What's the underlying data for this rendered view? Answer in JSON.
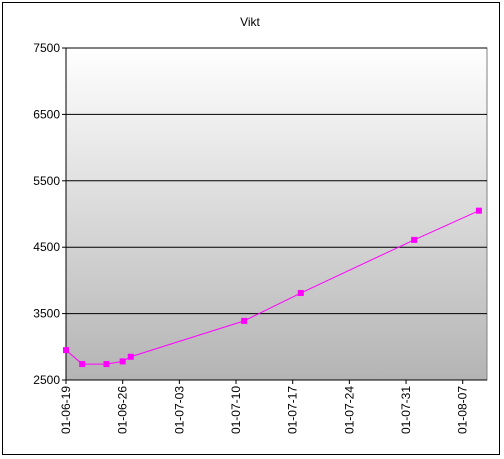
{
  "chart_data": {
    "type": "line",
    "title": "Vikt",
    "x": [
      "01-06-19",
      "01-06-21",
      "01-06-24",
      "01-06-26",
      "01-06-27",
      "01-07-11",
      "01-07-18",
      "01-08-01",
      "01-08-09"
    ],
    "series": [
      {
        "name": "Vikt",
        "color": "#ff00ff",
        "values": [
          2950,
          2740,
          2740,
          2780,
          2850,
          3390,
          3810,
          4610,
          5050
        ]
      }
    ],
    "xlim": [
      "01-06-19",
      "01-08-10"
    ],
    "xticks": [
      "01-06-19",
      "01-06-26",
      "01-07-03",
      "01-07-10",
      "01-07-17",
      "01-07-24",
      "01-07-31",
      "01-08-07"
    ],
    "ylim": [
      2500,
      7500
    ],
    "yticks": [
      2500,
      3500,
      4500,
      5500,
      6500,
      7500
    ],
    "grid": true
  }
}
